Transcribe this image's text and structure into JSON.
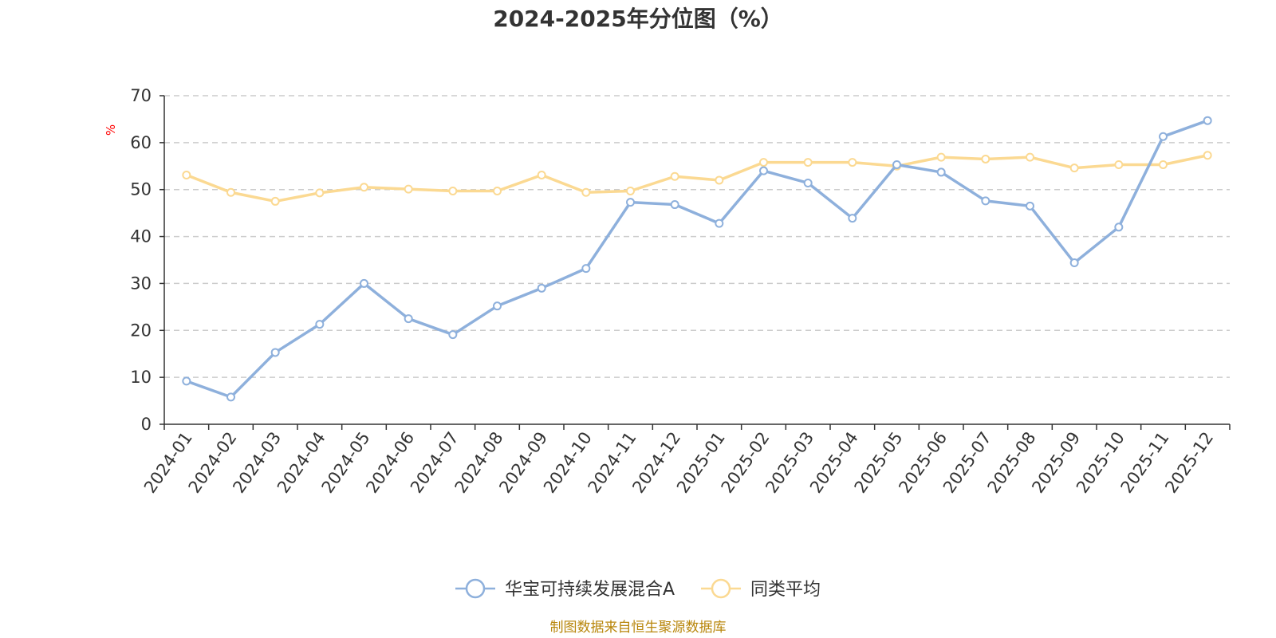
{
  "chart_data": {
    "type": "line",
    "title": "2024-2025年分位图（%）",
    "ylabel": "%",
    "xlabel": "",
    "ylim": [
      0,
      70
    ],
    "yticks": [
      0,
      10,
      20,
      30,
      40,
      50,
      60,
      70
    ],
    "grid": true,
    "legend_position": "bottom",
    "categories": [
      "2024-01",
      "2024-02",
      "2024-03",
      "2024-04",
      "2024-05",
      "2024-06",
      "2024-07",
      "2024-08",
      "2024-09",
      "2024-10",
      "2024-11",
      "2024-12",
      "2025-01",
      "2025-02",
      "2025-03",
      "2025-04",
      "2025-05",
      "2025-06",
      "2025-07",
      "2025-08",
      "2025-09",
      "2025-10",
      "2025-11",
      "2025-12"
    ],
    "series": [
      {
        "name": "华宝可持续发展混合A",
        "color": "#8eb0dc",
        "values": [
          9.2,
          5.8,
          15.3,
          21.3,
          30.0,
          22.5,
          19.1,
          25.2,
          29.0,
          33.2,
          47.3,
          46.8,
          42.8,
          54.0,
          51.4,
          43.9,
          55.3,
          53.7,
          47.6,
          46.5,
          34.4,
          42.0,
          61.3,
          64.7
        ]
      },
      {
        "name": "同类平均",
        "color": "#fbd992",
        "values": [
          53.1,
          49.4,
          47.5,
          49.3,
          50.5,
          50.1,
          49.7,
          49.7,
          53.1,
          49.4,
          49.7,
          52.8,
          52.0,
          55.8,
          55.8,
          55.8,
          55.0,
          56.9,
          56.5,
          56.9,
          54.6,
          55.3,
          55.3,
          57.3
        ]
      }
    ]
  },
  "footer": {
    "source": "制图数据来自恒生聚源数据库"
  }
}
